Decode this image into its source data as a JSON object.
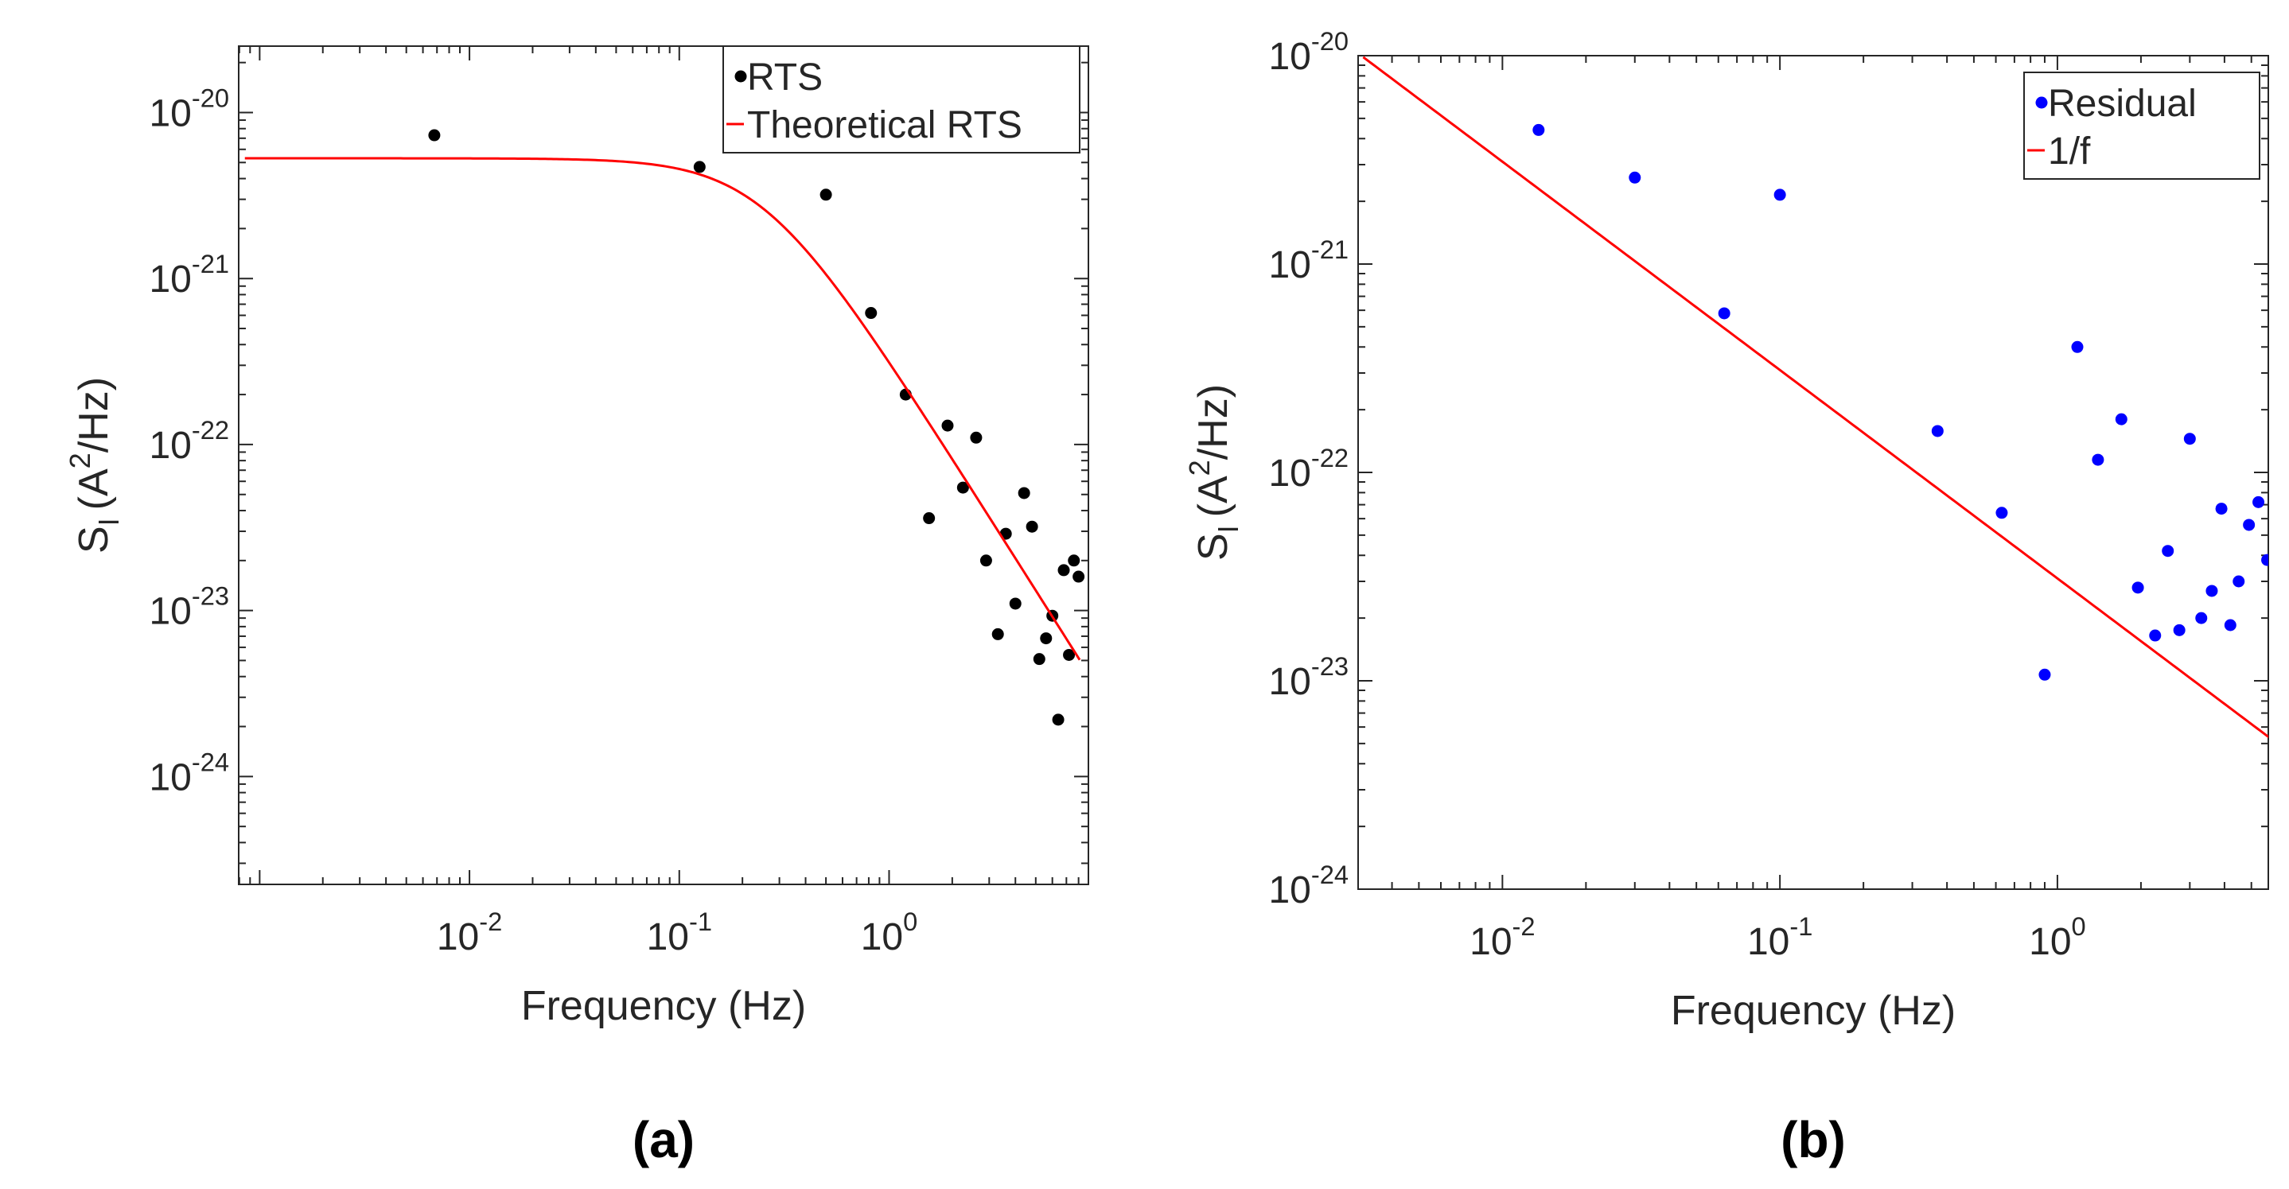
{
  "chart_data": [
    {
      "type": "scatter",
      "panel_label": "a",
      "title": "",
      "xlabel": "Frequency (Hz)",
      "ylabel_main": "S",
      "ylabel_sub": "I",
      "ylabel_unit_open": "(A",
      "ylabel_unit_sup": "2",
      "ylabel_unit_close": "/Hz)",
      "xscale": "log",
      "yscale": "log",
      "xlim_log10": [
        -3.1,
        0.95
      ],
      "ylim_log10": [
        -24.65,
        -19.6
      ],
      "xticks": [
        {
          "base": "10",
          "exp": "-2",
          "value": 0.01
        },
        {
          "base": "10",
          "exp": "-1",
          "value": 0.1
        },
        {
          "base": "10",
          "exp": "0",
          "value": 1
        }
      ],
      "yticks": [
        {
          "base": "10",
          "exp": "-20",
          "value": 1e-20
        },
        {
          "base": "10",
          "exp": "-21",
          "value": 1e-21
        },
        {
          "base": "10",
          "exp": "-22",
          "value": 1e-22
        },
        {
          "base": "10",
          "exp": "-23",
          "value": 1e-23
        },
        {
          "base": "10",
          "exp": "-24",
          "value": 1e-24
        }
      ],
      "legend_position": "top-right",
      "series": [
        {
          "name": "RTS",
          "kind": "scatter",
          "color": "#000000",
          "x": [
            0.0068,
            0.125,
            0.5,
            0.82,
            1.2,
            1.55,
            1.9,
            2.25,
            2.6,
            2.9,
            3.3,
            3.6,
            4.0,
            4.4,
            4.8,
            5.2,
            5.6,
            6.0,
            6.4,
            6.8,
            7.2,
            7.6,
            8.0
          ],
          "y": [
            7.3e-21,
            4.7e-21,
            3.2e-21,
            6.2e-22,
            2e-22,
            3.6e-23,
            1.3e-22,
            5.5e-23,
            1.1e-22,
            2e-23,
            7.2e-24,
            2.9e-23,
            1.1e-23,
            5.1e-23,
            3.2e-23,
            5.1e-24,
            6.8e-24,
            9.3e-24,
            2.2e-24,
            1.75e-23,
            5.4e-24,
            2e-23,
            1.6e-23
          ]
        },
        {
          "name": "Theoretical RTS",
          "kind": "line",
          "color": "#ff0000",
          "model": {
            "A": 5.3e-21,
            "fc": 0.25
          },
          "x_range": [
            0.00085,
            8.1
          ]
        }
      ],
      "caption": "(a)"
    },
    {
      "type": "scatter",
      "panel_label": "b",
      "title": "",
      "xlabel": "Frequency (Hz)",
      "ylabel_main": "S",
      "ylabel_sub": "I",
      "ylabel_unit_open": "(A",
      "ylabel_unit_sup": "2",
      "ylabel_unit_close": "/Hz)",
      "xscale": "log",
      "yscale": "log",
      "xlim_log10": [
        -2.52,
        0.76
      ],
      "ylim_log10": [
        -24.0,
        -20.0
      ],
      "xticks": [
        {
          "base": "10",
          "exp": "-2",
          "value": 0.01
        },
        {
          "base": "10",
          "exp": "-1",
          "value": 0.1
        },
        {
          "base": "10",
          "exp": "0",
          "value": 1
        }
      ],
      "yticks": [
        {
          "base": "10",
          "exp": "-20",
          "value": 1e-20
        },
        {
          "base": "10",
          "exp": "-21",
          "value": 1e-21
        },
        {
          "base": "10",
          "exp": "-22",
          "value": 1e-22
        },
        {
          "base": "10",
          "exp": "-23",
          "value": 1e-23
        },
        {
          "base": "10",
          "exp": "-24",
          "value": 1e-24
        }
      ],
      "legend_position": "top-right",
      "series": [
        {
          "name": "Residual",
          "kind": "scatter",
          "color": "#0000ff",
          "x": [
            0.0135,
            0.03,
            0.063,
            0.1,
            0.37,
            0.63,
            0.9,
            1.18,
            1.4,
            1.7,
            1.95,
            2.25,
            2.5,
            2.75,
            3.0,
            3.3,
            3.6,
            3.9,
            4.2,
            4.5,
            4.9,
            5.3,
            5.7
          ],
          "y": [
            4.4e-21,
            2.6e-21,
            5.8e-22,
            2.15e-21,
            1.58e-22,
            6.4e-23,
            1.07e-23,
            4e-22,
            1.15e-22,
            1.8e-22,
            2.8e-23,
            1.65e-23,
            4.2e-23,
            1.75e-23,
            1.45e-22,
            2e-23,
            2.7e-23,
            6.7e-23,
            1.85e-23,
            3e-23,
            5.6e-23,
            7.2e-23,
            3.8e-23
          ]
        },
        {
          "name": "1/f",
          "kind": "line",
          "color": "#ff0000",
          "model": {
            "C": 3.1e-23
          },
          "x_range": [
            0.00315,
            5.8
          ]
        }
      ],
      "caption": "(b)"
    }
  ]
}
